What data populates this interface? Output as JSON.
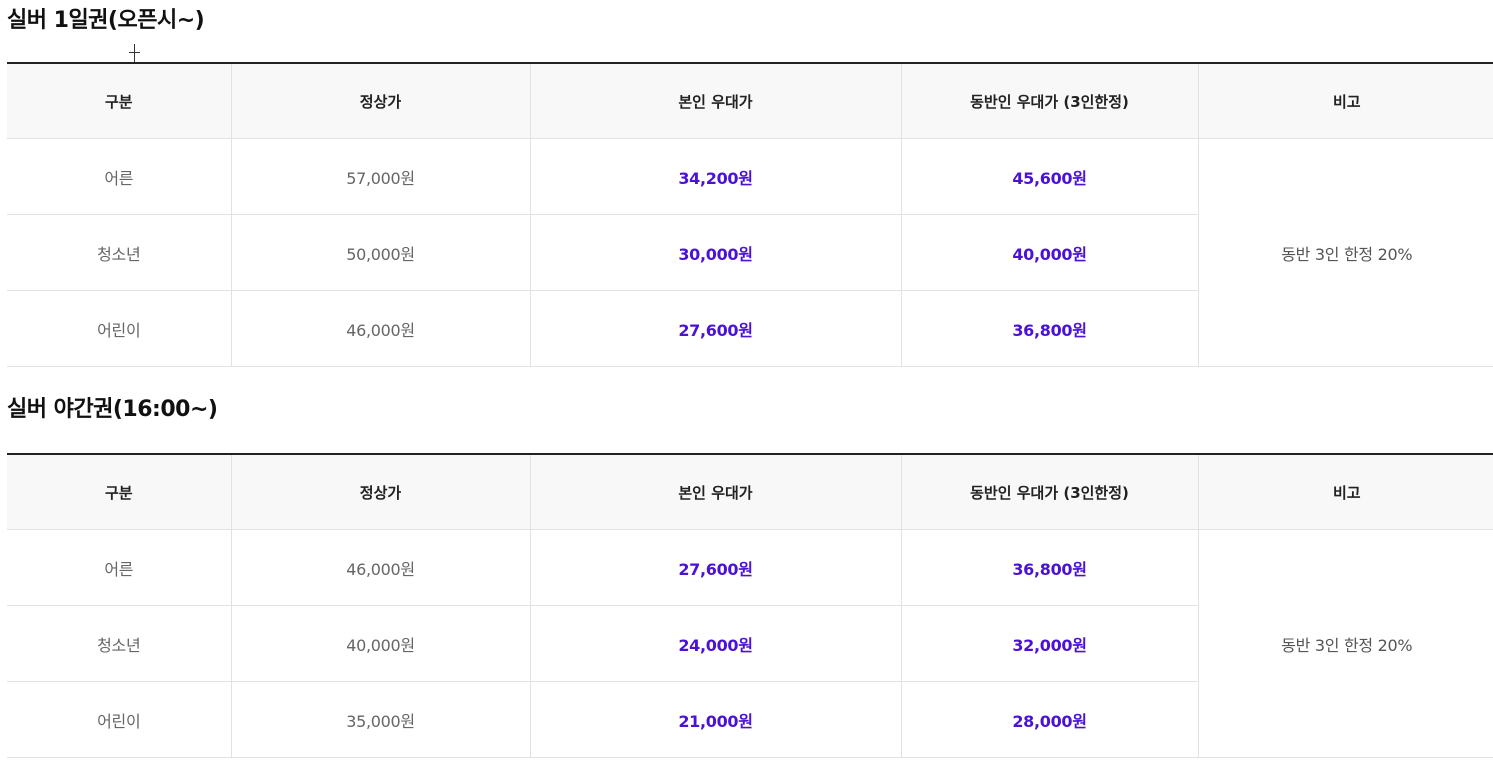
{
  "sections": [
    {
      "title": "실버 1일권(오픈시~)",
      "headers": [
        "구분",
        "정상가",
        "본인 우대가",
        "동반인 우대가 (3인한정)",
        "비고"
      ],
      "rows": [
        {
          "category": "어른",
          "regular": "57,000원",
          "self": "34,200원",
          "companion": "45,600원"
        },
        {
          "category": "청소년",
          "regular": "50,000원",
          "self": "30,000원",
          "companion": "40,000원"
        },
        {
          "category": "어린이",
          "regular": "46,000원",
          "self": "27,600원",
          "companion": "36,800원"
        }
      ],
      "note": "동반 3인 한정 20%"
    },
    {
      "title": "실버 야간권(16:00~)",
      "headers": [
        "구분",
        "정상가",
        "본인 우대가",
        "동반인 우대가 (3인한정)",
        "비고"
      ],
      "rows": [
        {
          "category": "어른",
          "regular": "46,000원",
          "self": "27,600원",
          "companion": "36,800원"
        },
        {
          "category": "청소년",
          "regular": "40,000원",
          "self": "24,000원",
          "companion": "32,000원"
        },
        {
          "category": "어린이",
          "regular": "35,000원",
          "self": "21,000원",
          "companion": "28,000원"
        }
      ],
      "note": "동반 3인 한정 20%"
    }
  ],
  "colors": {
    "highlight": "#4b12d6",
    "header_bg": "#f8f8f8",
    "border": "#e2e2e2",
    "top_border": "#222222"
  }
}
